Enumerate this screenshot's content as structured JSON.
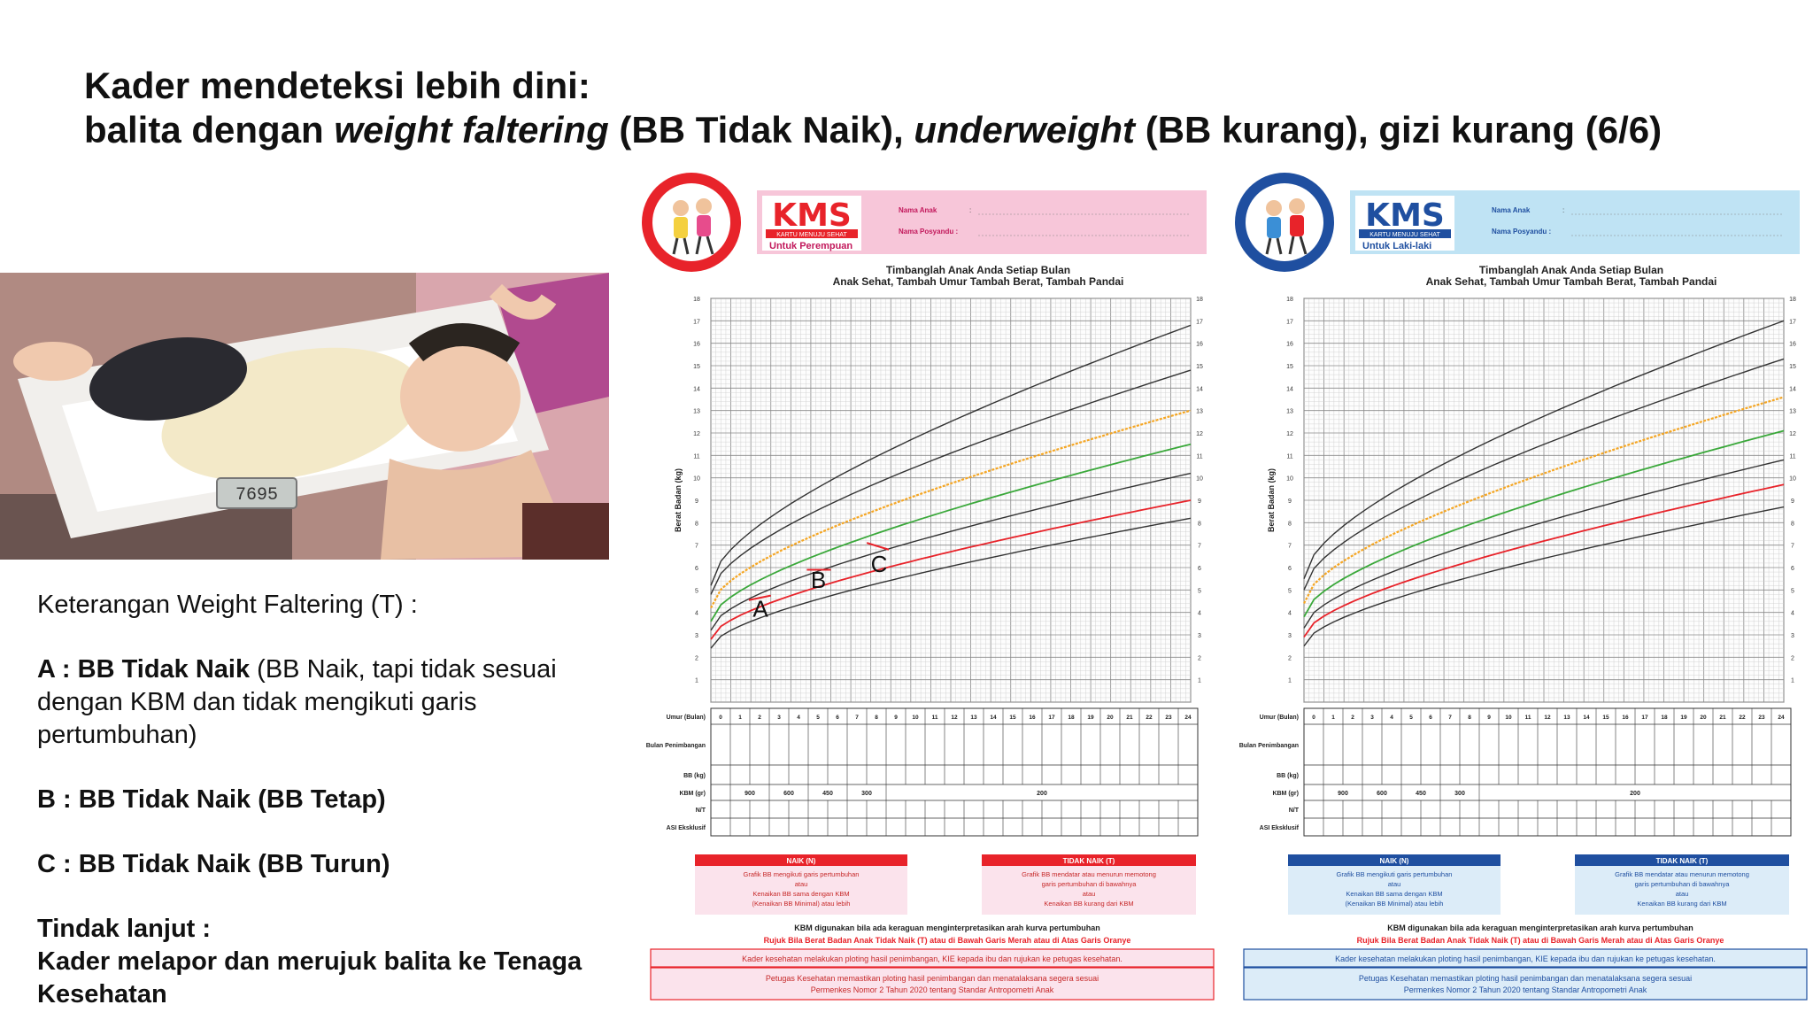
{
  "title": {
    "line1": "Kader mendeteksi lebih dini:",
    "line2_a": "balita dengan ",
    "line2_b": "weight faltering",
    "line2_c": " (BB Tidak Naik), ",
    "line2_d": "underweight",
    "line2_e": " (BB kurang), gizi kurang (6/6)"
  },
  "photo": {
    "scale_display": "7695"
  },
  "legend": {
    "heading": "Keterangan Weight Faltering (T) :",
    "a_bold": "A : BB Tidak Naik",
    "a_rest": " (BB Naik, tapi tidak sesuai dengan KBM dan tidak mengikuti garis pertumbuhan)",
    "b": "B : BB Tidak Naik (BB Tetap)",
    "c": "C : BB Tidak Naik (BB Turun)",
    "followup_title": "Tindak lanjut :",
    "followup_text": "Kader melapor dan merujuk balita ke Tenaga Kesehatan"
  },
  "kms_common": {
    "logo": "KMS",
    "logo_sub": "KARTU MENUJU SEHAT",
    "field_name": "Nama Anak",
    "field_posyandu": "Nama Posyandu :",
    "heading1": "Timbanglah Anak Anda Setiap Bulan",
    "heading2": "Anak Sehat, Tambah Umur Tambah Berat, Tambah Pandai",
    "y_axis": "Berat Badan (kg)",
    "y_ticks": [
      "1",
      "2",
      "3",
      "4",
      "5",
      "6",
      "7",
      "8",
      "9",
      "10",
      "11",
      "12",
      "13",
      "14",
      "15",
      "16",
      "17",
      "18"
    ],
    "months": [
      "0",
      "1",
      "2",
      "3",
      "4",
      "5",
      "6",
      "7",
      "8",
      "9",
      "10",
      "11",
      "12",
      "13",
      "14",
      "15",
      "16",
      "17",
      "18",
      "19",
      "20",
      "21",
      "22",
      "23",
      "24"
    ],
    "row_labels": [
      "Umur (Bulan)",
      "Bulan Penimbangan",
      "BB (kg)",
      "KBM (gr)",
      "N/T",
      "ASI Eksklusif"
    ],
    "kbm_values": [
      "900",
      "600",
      "450",
      "300",
      "200"
    ],
    "naik_title": "NAIK (N)",
    "naik_l1": "Grafik BB mengikuti garis pertumbuhan",
    "naik_l2": "atau",
    "naik_l3": "Kenaikan BB sama dengan KBM",
    "naik_l4": "(Kenaikan BB Minimal) atau lebih",
    "tidak_title": "TIDAK NAIK (T)",
    "tidak_l1": "Grafik BB mendatar atau menurun memotong",
    "tidak_l2": "garis pertumbuhan di bawahnya",
    "tidak_l3": "atau",
    "tidak_l4": "Kenaikan BB kurang dari KBM",
    "note": "KBM digunakan bila ada keraguan menginterpretasikan arah kurva pertumbuhan",
    "refer": "Rujuk Bila Berat Badan Anak Tidak Naik (T) atau di Bawah Garis Merah atau di Atas Garis Oranye",
    "box1": "Kader kesehatan melakukan ploting hasil penimbangan, KIE kepada ibu dan rujukan ke petugas kesehatan.",
    "box2a": "Petugas Kesehatan memastikan ploting hasil penimbangan dan menatalaksana segera sesuai",
    "box2b": "Permenkes Nomor 2 Tahun 2020 tentang Standar Antropometri Anak"
  },
  "kms_girl": {
    "subtitle": "Untuk Perempuan",
    "accent": "#e8232a",
    "header_bg": "#f7c6d9",
    "box_bg": "#fbe3ec"
  },
  "kms_boy": {
    "subtitle": "Untuk Laki-laki",
    "accent": "#1f4fa0",
    "header_bg": "#bfe3f4",
    "box_bg": "#dcecf8"
  },
  "annotations": {
    "a": "A",
    "b": "B",
    "c": "C"
  },
  "colors": {
    "black_curve": "#333333",
    "orange_curve": "#f5a623",
    "green_curve": "#3aa83a",
    "red_curve": "#e8232a"
  }
}
